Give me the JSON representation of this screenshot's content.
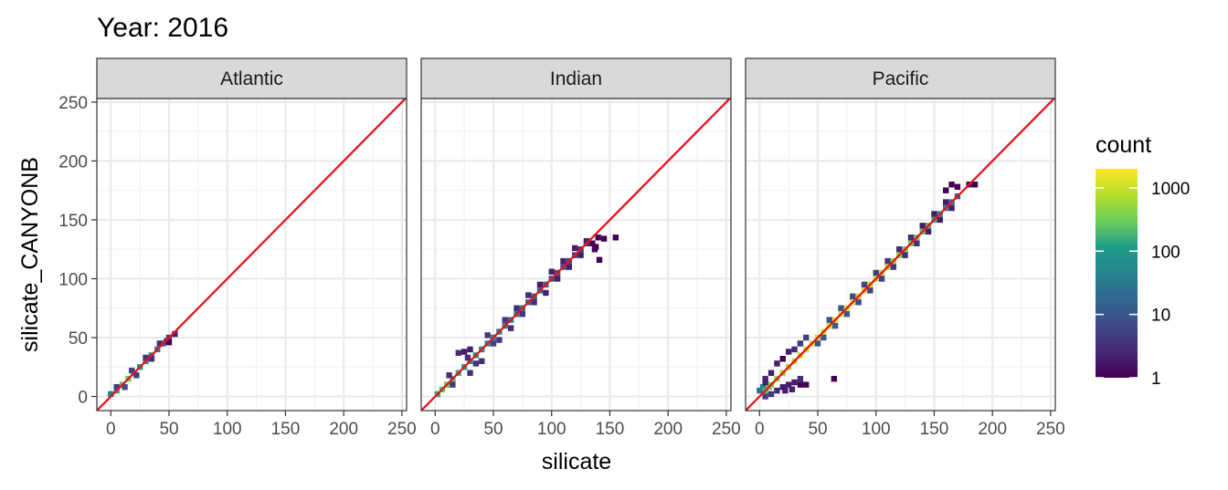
{
  "chart_data": {
    "type": "heatmap",
    "title": "Year: 2016",
    "xlabel": "silicate",
    "ylabel": "silicate_CANYONB",
    "xlim": [
      -12,
      254
    ],
    "ylim": [
      -12,
      253
    ],
    "x_ticks": [
      0,
      50,
      100,
      150,
      200,
      250
    ],
    "y_ticks": [
      0,
      50,
      100,
      150,
      200,
      250
    ],
    "grid": true,
    "reference_line": {
      "slope": 1,
      "intercept": 0,
      "color": "#e8141e"
    },
    "legend": {
      "title": "count",
      "placement": "right",
      "scale": "log10",
      "range": [
        1,
        2000
      ],
      "ticks": [
        1,
        10,
        100,
        1000
      ],
      "tick_labels": [
        "1",
        "10",
        "100",
        "1000"
      ],
      "colors": [
        "#440154",
        "#482777",
        "#3f4a8a",
        "#31678e",
        "#26838f",
        "#1f9d8a",
        "#6cce5a",
        "#b6de2b",
        "#fee825"
      ]
    },
    "facets": [
      {
        "name": "Atlantic",
        "bins": [
          [
            0,
            2,
            40
          ],
          [
            5,
            5,
            150
          ],
          [
            10,
            10,
            250
          ],
          [
            15,
            15,
            300
          ],
          [
            20,
            20,
            200
          ],
          [
            25,
            25,
            120
          ],
          [
            30,
            30,
            80
          ],
          [
            35,
            35,
            50
          ],
          [
            40,
            40,
            30
          ],
          [
            45,
            45,
            15
          ],
          [
            50,
            50,
            5
          ],
          [
            55,
            53,
            2
          ],
          [
            5,
            8,
            5
          ],
          [
            12,
            8,
            8
          ],
          [
            18,
            22,
            6
          ],
          [
            22,
            18,
            5
          ],
          [
            30,
            33,
            4
          ],
          [
            35,
            32,
            3
          ],
          [
            42,
            45,
            3
          ],
          [
            48,
            47,
            2
          ],
          [
            50,
            46,
            1
          ]
        ]
      },
      {
        "name": "Indian",
        "bins": [
          [
            2,
            2,
            150
          ],
          [
            6,
            6,
            250
          ],
          [
            10,
            10,
            300
          ],
          [
            15,
            15,
            200
          ],
          [
            20,
            20,
            150
          ],
          [
            25,
            25,
            120
          ],
          [
            30,
            30,
            100
          ],
          [
            35,
            35,
            90
          ],
          [
            40,
            40,
            80
          ],
          [
            45,
            45,
            70
          ],
          [
            50,
            50,
            60
          ],
          [
            55,
            55,
            50
          ],
          [
            60,
            60,
            45
          ],
          [
            65,
            65,
            40
          ],
          [
            70,
            70,
            35
          ],
          [
            75,
            75,
            30
          ],
          [
            80,
            80,
            25
          ],
          [
            85,
            85,
            20
          ],
          [
            90,
            90,
            18
          ],
          [
            95,
            95,
            15
          ],
          [
            100,
            100,
            12
          ],
          [
            105,
            105,
            10
          ],
          [
            110,
            110,
            8
          ],
          [
            115,
            115,
            6
          ],
          [
            120,
            120,
            5
          ],
          [
            125,
            125,
            4
          ],
          [
            130,
            130,
            3
          ],
          [
            20,
            37,
            3
          ],
          [
            25,
            38,
            2
          ],
          [
            30,
            40,
            2
          ],
          [
            28,
            33,
            3
          ],
          [
            35,
            28,
            4
          ],
          [
            40,
            30,
            3
          ],
          [
            45,
            52,
            4
          ],
          [
            50,
            45,
            5
          ],
          [
            55,
            48,
            4
          ],
          [
            60,
            65,
            4
          ],
          [
            65,
            58,
            3
          ],
          [
            70,
            75,
            3
          ],
          [
            75,
            70,
            4
          ],
          [
            80,
            86,
            3
          ],
          [
            85,
            80,
            3
          ],
          [
            90,
            95,
            2
          ],
          [
            95,
            88,
            2
          ],
          [
            100,
            106,
            2
          ],
          [
            105,
            100,
            2
          ],
          [
            110,
            115,
            2
          ],
          [
            115,
            110,
            2
          ],
          [
            120,
            126,
            2
          ],
          [
            125,
            120,
            2
          ],
          [
            130,
            132,
            2
          ],
          [
            135,
            130,
            1
          ],
          [
            138,
            127,
            1
          ],
          [
            140,
            135,
            1
          ],
          [
            145,
            134,
            1
          ],
          [
            155,
            135,
            1
          ],
          [
            141,
            116,
            1
          ],
          [
            137,
            125,
            1
          ],
          [
            30,
            20,
            3
          ],
          [
            15,
            10,
            4
          ],
          [
            12,
            18,
            3
          ]
        ]
      },
      {
        "name": "Pacific",
        "bins": [
          [
            0,
            5,
            30
          ],
          [
            3,
            8,
            40
          ],
          [
            5,
            5,
            200
          ],
          [
            8,
            8,
            300
          ],
          [
            10,
            10,
            400
          ],
          [
            15,
            15,
            500
          ],
          [
            20,
            20,
            600
          ],
          [
            25,
            25,
            700
          ],
          [
            30,
            30,
            800
          ],
          [
            35,
            35,
            900
          ],
          [
            40,
            40,
            1000
          ],
          [
            45,
            45,
            1100
          ],
          [
            50,
            50,
            1200
          ],
          [
            55,
            55,
            1300
          ],
          [
            60,
            60,
            1400
          ],
          [
            65,
            65,
            1500
          ],
          [
            70,
            70,
            1500
          ],
          [
            75,
            75,
            1400
          ],
          [
            80,
            80,
            1300
          ],
          [
            85,
            85,
            1200
          ],
          [
            90,
            90,
            1100
          ],
          [
            95,
            95,
            1000
          ],
          [
            100,
            100,
            900
          ],
          [
            105,
            105,
            800
          ],
          [
            110,
            110,
            700
          ],
          [
            115,
            115,
            600
          ],
          [
            120,
            120,
            500
          ],
          [
            125,
            125,
            400
          ],
          [
            130,
            130,
            350
          ],
          [
            135,
            135,
            300
          ],
          [
            140,
            140,
            250
          ],
          [
            145,
            145,
            200
          ],
          [
            150,
            150,
            150
          ],
          [
            155,
            155,
            100
          ],
          [
            160,
            160,
            60
          ],
          [
            165,
            165,
            30
          ],
          [
            170,
            170,
            10
          ],
          [
            5,
            15,
            3
          ],
          [
            10,
            20,
            2
          ],
          [
            15,
            28,
            2
          ],
          [
            20,
            32,
            1
          ],
          [
            25,
            38,
            2
          ],
          [
            30,
            40,
            3
          ],
          [
            35,
            45,
            4
          ],
          [
            40,
            50,
            5
          ],
          [
            5,
            0,
            5
          ],
          [
            10,
            2,
            4
          ],
          [
            15,
            5,
            3
          ],
          [
            20,
            8,
            2
          ],
          [
            25,
            10,
            2
          ],
          [
            30,
            12,
            2
          ],
          [
            35,
            15,
            3
          ],
          [
            22,
            5,
            2
          ],
          [
            28,
            6,
            2
          ],
          [
            35,
            10,
            1
          ],
          [
            40,
            10,
            1
          ],
          [
            50,
            45,
            10
          ],
          [
            55,
            50,
            12
          ],
          [
            60,
            65,
            10
          ],
          [
            65,
            60,
            12
          ],
          [
            70,
            75,
            10
          ],
          [
            75,
            70,
            10
          ],
          [
            80,
            85,
            8
          ],
          [
            85,
            80,
            8
          ],
          [
            90,
            95,
            6
          ],
          [
            95,
            90,
            6
          ],
          [
            100,
            105,
            5
          ],
          [
            105,
            100,
            5
          ],
          [
            110,
            115,
            4
          ],
          [
            115,
            110,
            4
          ],
          [
            120,
            125,
            3
          ],
          [
            125,
            120,
            3
          ],
          [
            130,
            135,
            3
          ],
          [
            135,
            130,
            3
          ],
          [
            140,
            145,
            2
          ],
          [
            145,
            140,
            2
          ],
          [
            150,
            155,
            2
          ],
          [
            155,
            150,
            2
          ],
          [
            160,
            165,
            2
          ],
          [
            165,
            160,
            2
          ],
          [
            160,
            175,
            1
          ],
          [
            165,
            180,
            1
          ],
          [
            170,
            178,
            1
          ],
          [
            180,
            180,
            1
          ],
          [
            185,
            180,
            1
          ],
          [
            64,
            15,
            1
          ],
          [
            5,
            12,
            2
          ]
        ]
      }
    ]
  }
}
